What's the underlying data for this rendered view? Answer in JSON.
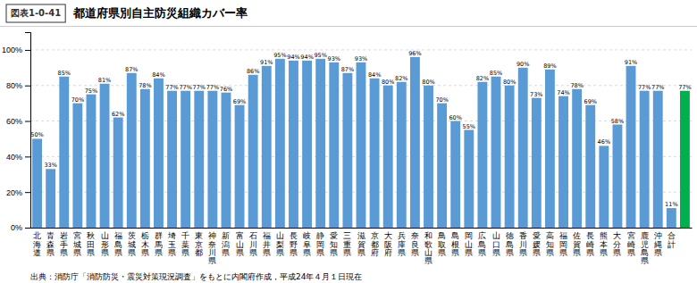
{
  "chart_data": {
    "type": "bar",
    "figure_label": "図表1-0-41",
    "title": "都道府県別自主防災組織カバー率",
    "caption": "出典：消防庁「消防防災・震災対策現況調査」をもとに内閣府作成，平成24年４月１日現在",
    "categories": [
      "北\n海\n道",
      "青\n森\n県",
      "岩\n手\n県",
      "宮\n城\n県",
      "秋\n田\n県",
      "山\n形\n県",
      "福\n島\n県",
      "茨\n城\n県",
      "栃\n木\n県",
      "群\n馬\n県",
      "埼\n玉\n県",
      "千\n葉\n県",
      "東\n京\n都",
      "神\n奈\n川\n県",
      "新\n潟\n県",
      "富\n山\n県",
      "石\n川\n県",
      "福\n井\n県",
      "山\n梨\n県",
      "長\n野\n県",
      "岐\n阜\n県",
      "静\n岡\n県",
      "愛\n知\n県",
      "三\n重\n県",
      "滋\n賀\n県",
      "京\n都\n府",
      "大\n阪\n府",
      "兵\n庫\n県",
      "奈\n良\n県",
      "和\n歌\n山\n県",
      "鳥\n取\n県",
      "島\n根\n県",
      "岡\n山\n県",
      "広\n島\n県",
      "山\n口\n県",
      "徳\n島\n県",
      "香\n川\n県",
      "愛\n媛\n県",
      "高\n知\n県",
      "福\n岡\n県",
      "佐\n賀\n県",
      "長\n崎\n県",
      "熊\n本\n県",
      "大\n分\n県",
      "宮\n崎\n県",
      "鹿\n児\n島\n県",
      "沖\n縄\n県",
      "合\n計",
      null
    ],
    "values": [
      50,
      33,
      85,
      70,
      75,
      81,
      62,
      87,
      78,
      84,
      77,
      77,
      77,
      77,
      76,
      69,
      86,
      91,
      95,
      94,
      94,
      95,
      93,
      87,
      93,
      84,
      80,
      82,
      96,
      80,
      70,
      60,
      55,
      82,
      85,
      80,
      90,
      73,
      89,
      74,
      78,
      69,
      46,
      58,
      91,
      77,
      77,
      11,
      77
    ],
    "value_labels": [
      "50%",
      "33%",
      "85%",
      "70%",
      "75%",
      "81%",
      "62%",
      "87%",
      "78%",
      "84%",
      "77%",
      "77%",
      "77%",
      "77%",
      "76%",
      "69%",
      "86%",
      "91%",
      "95%",
      "94%",
      "94%",
      "95%",
      "93%",
      "87%",
      "93%",
      "84%",
      "80%",
      "82%",
      "96%",
      "80%",
      "70%",
      "60%",
      "55%",
      "82%",
      "85%",
      "80%",
      "90%",
      "73%",
      "89%",
      "74%",
      "78%",
      "69%",
      "46%",
      "58%",
      "91%",
      "77%",
      "77%",
      "11%",
      "77%"
    ],
    "colors": [
      "#5b9bd5",
      "#5b9bd5",
      "#5b9bd5",
      "#5b9bd5",
      "#5b9bd5",
      "#5b9bd5",
      "#5b9bd5",
      "#5b9bd5",
      "#5b9bd5",
      "#5b9bd5",
      "#5b9bd5",
      "#5b9bd5",
      "#5b9bd5",
      "#5b9bd5",
      "#5b9bd5",
      "#5b9bd5",
      "#5b9bd5",
      "#5b9bd5",
      "#5b9bd5",
      "#5b9bd5",
      "#5b9bd5",
      "#5b9bd5",
      "#5b9bd5",
      "#5b9bd5",
      "#5b9bd5",
      "#5b9bd5",
      "#5b9bd5",
      "#5b9bd5",
      "#5b9bd5",
      "#5b9bd5",
      "#5b9bd5",
      "#5b9bd5",
      "#5b9bd5",
      "#5b9bd5",
      "#5b9bd5",
      "#5b9bd5",
      "#5b9bd5",
      "#5b9bd5",
      "#5b9bd5",
      "#5b9bd5",
      "#5b9bd5",
      "#5b9bd5",
      "#5b9bd5",
      "#5b9bd5",
      "#5b9bd5",
      "#5b9bd5",
      "#5b9bd5",
      "#5b9bd5",
      "#00b050"
    ],
    "ylim": [
      0,
      110
    ],
    "yticks": [
      {
        "value": 0,
        "label": "0%"
      },
      {
        "value": 20,
        "label": "20%"
      },
      {
        "value": 40,
        "label": "40%"
      },
      {
        "value": 60,
        "label": "60%"
      },
      {
        "value": 80,
        "label": "80%"
      },
      {
        "value": 100,
        "label": "100%"
      }
    ],
    "grid": true,
    "data_labels": true
  }
}
